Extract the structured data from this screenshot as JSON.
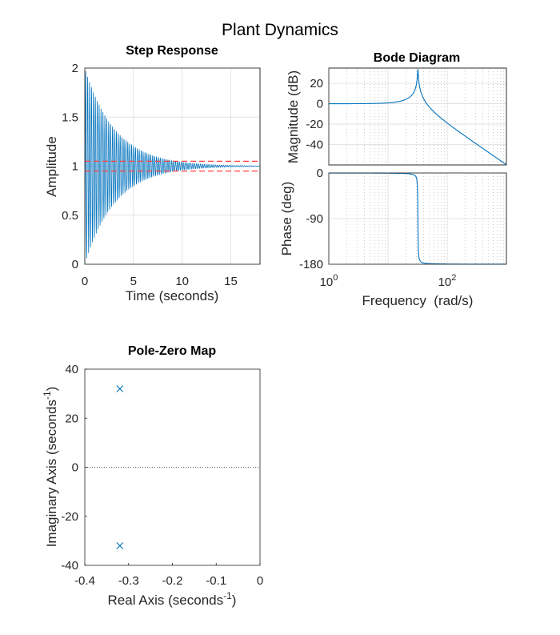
{
  "figure_title": "Plant Dynamics",
  "colors": {
    "line": "#0072BD",
    "settle": "#FF4040",
    "axis": "#262626",
    "grid": "#dcdcdc"
  },
  "chart_data": [
    {
      "type": "line",
      "name": "step",
      "title": "Step Response",
      "xlabel": "Time (seconds)",
      "ylabel": "Amplitude",
      "xlim": [
        0,
        18
      ],
      "ylim": [
        0,
        2
      ],
      "xticks": [
        0,
        5,
        10,
        15
      ],
      "yticks": [
        0,
        0.5,
        1,
        1.5,
        2
      ],
      "xtick_labels": [
        "0",
        "5",
        "10",
        "15"
      ],
      "ytick_labels": [
        "0",
        "0.5",
        "1",
        "1.5",
        "2"
      ],
      "grid": true,
      "system": {
        "wn": 32,
        "zeta": 0.01,
        "final_value": 1
      },
      "settling_band": [
        0.95,
        1.05
      ]
    },
    {
      "type": "line",
      "name": "bode-magnitude",
      "title": "Bode Diagram",
      "ylabel": "Magnitude (dB)",
      "xscale": "log",
      "xlim": [
        1,
        1000
      ],
      "ylim": [
        -60,
        35
      ],
      "yticks": [
        -40,
        -20,
        0,
        20
      ],
      "ytick_labels": [
        "-40",
        "-20",
        "0",
        "20"
      ],
      "peak_db": 34
    },
    {
      "type": "line",
      "name": "bode-phase",
      "xlabel": "Frequency  (rad/s)",
      "ylabel": "Phase (deg)",
      "xscale": "log",
      "xlim": [
        1,
        1000
      ],
      "ylim": [
        -180,
        0
      ],
      "xticks": [
        1,
        100
      ],
      "xtick_bases": [
        "10",
        "10"
      ],
      "xtick_exps": [
        "0",
        "2"
      ],
      "yticks": [
        -180,
        -90,
        0
      ],
      "ytick_labels": [
        "-180",
        "-90",
        "0"
      ]
    },
    {
      "type": "scatter",
      "name": "pzmap",
      "title": "Pole-Zero Map",
      "xlabel": "Real Axis (seconds",
      "ylabel": "Imaginary Axis (seconds",
      "unit_exp": "-1",
      "unit_close": ")",
      "xlim": [
        -0.4,
        0
      ],
      "ylim": [
        -40,
        40
      ],
      "xticks": [
        -0.4,
        -0.3,
        -0.2,
        -0.1,
        0
      ],
      "xtick_labels": [
        "-0.4",
        "-0.3",
        "-0.2",
        "-0.1",
        "0"
      ],
      "yticks": [
        -40,
        -20,
        0,
        20,
        40
      ],
      "ytick_labels": [
        "-40",
        "-20",
        "0",
        "20",
        "40"
      ],
      "poles": [
        {
          "re": -0.32,
          "im": 32
        },
        {
          "re": -0.32,
          "im": -32
        }
      ]
    }
  ]
}
